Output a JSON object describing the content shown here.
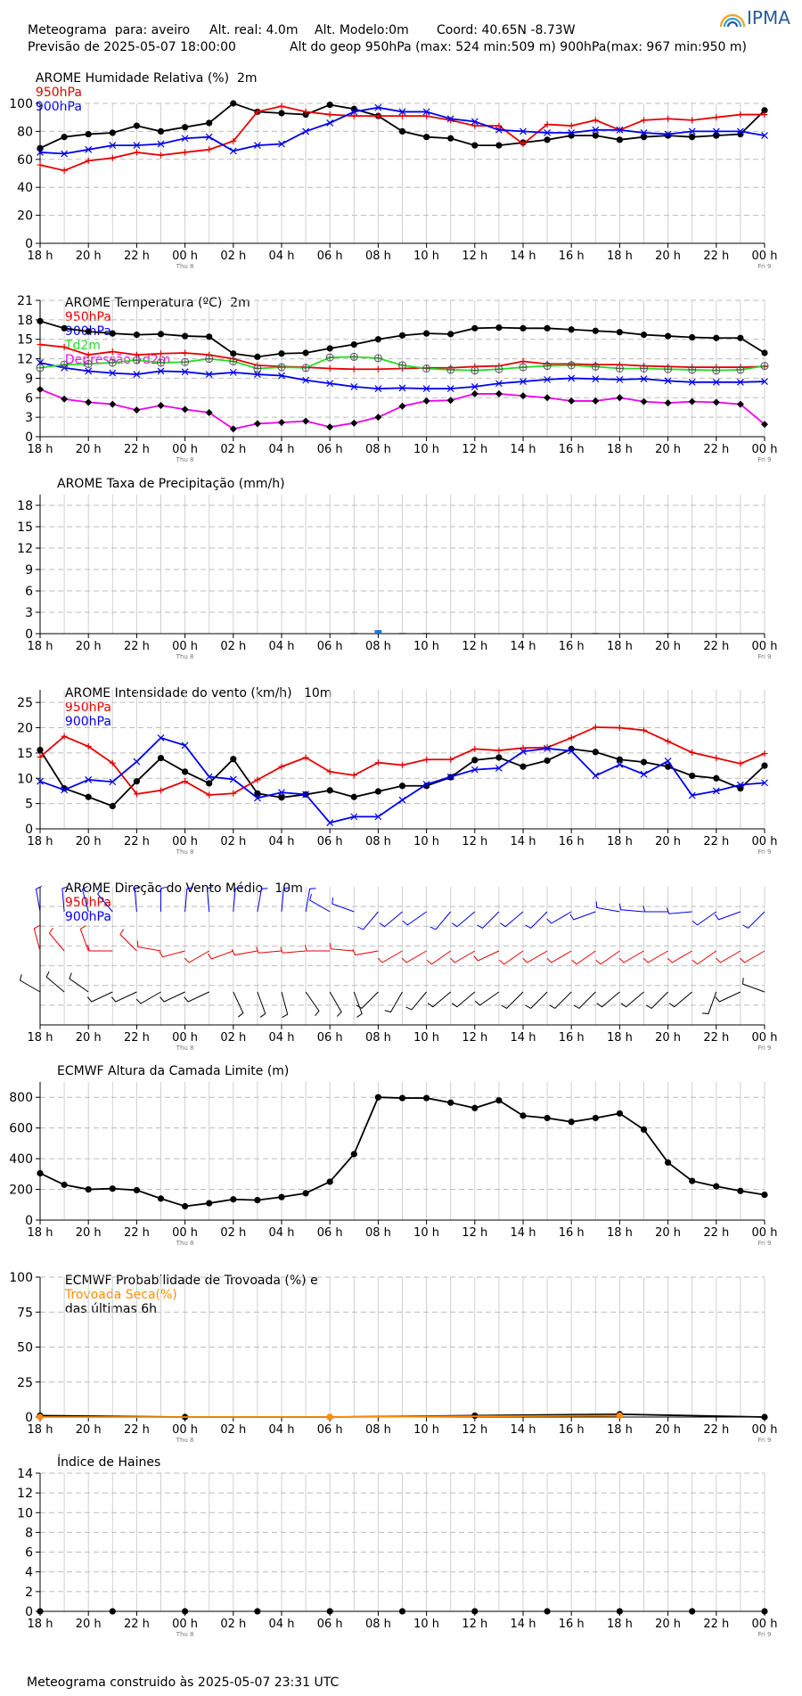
{
  "header": {
    "line1_a": "Meteograma  para: aveiro",
    "line1_b": "Alt. real: 4.0m",
    "line1_c": "Alt. Modelo:0m",
    "line1_d": "Coord: 40.65N -8.73W",
    "line2_a": "Previsão de 2025-05-07 18:00:00",
    "line2_b": "Alt do geop 950hPa (max: 524 min:509 m) 900hPa(max: 967 min:950 m)"
  },
  "logo": {
    "text": "IPMA"
  },
  "footer": "Meteograma construido às 2025-05-07 23:31 UTC",
  "colors": {
    "black": "#000000",
    "red": "#e60000",
    "blue": "#0000ee",
    "green": "#22dd22",
    "magenta": "#ee00ee",
    "orange": "#ff8c00",
    "precip": "#1f77d4"
  },
  "x_ticks": [
    "18 h",
    "20 h",
    "22 h",
    "00 h",
    "02 h",
    "04 h",
    "06 h",
    "08 h",
    "10 h",
    "12 h",
    "14 h",
    "16 h",
    "18 h",
    "20 h",
    "22 h",
    "00 h"
  ],
  "day_labels": [
    {
      "at": 3,
      "text": "Thu 8"
    },
    {
      "at": 15,
      "text": "Fri 9"
    }
  ],
  "chart_data": [
    {
      "id": "humidity",
      "type": "line",
      "title": "AROME Humidade Relativa (%)  2m",
      "legend": [
        {
          "text": "950hPa",
          "color": "red"
        },
        {
          "text": "900hPa",
          "color": "blue"
        }
      ],
      "ylim": [
        0,
        100
      ],
      "yticks": [
        "0",
        "20",
        "40",
        "60",
        "80",
        "100"
      ],
      "series": [
        {
          "name": "2m",
          "color": "black",
          "marker": "dot",
          "values": [
            68,
            76,
            78,
            79,
            84,
            80,
            83,
            86,
            100,
            94,
            93,
            92,
            99,
            96,
            91,
            80,
            76,
            75,
            70,
            70,
            72,
            74,
            77,
            77,
            74,
            76,
            77,
            76,
            77,
            78,
            95
          ]
        },
        {
          "name": "950hPa",
          "color": "red",
          "marker": "plus",
          "values": [
            56,
            52,
            59,
            61,
            65,
            63,
            65,
            67,
            73,
            94,
            98,
            94,
            92,
            91,
            91,
            91,
            91,
            88,
            84,
            84,
            71,
            85,
            84,
            88,
            81,
            88,
            89,
            88,
            90,
            92,
            92
          ]
        },
        {
          "name": "900hPa",
          "color": "blue",
          "marker": "x",
          "values": [
            65,
            64,
            67,
            70,
            70,
            71,
            75,
            76,
            66,
            70,
            71,
            80,
            86,
            94,
            97,
            94,
            94,
            89,
            87,
            81,
            80,
            79,
            79,
            81,
            81,
            79,
            78,
            80,
            80,
            80,
            77
          ]
        }
      ]
    },
    {
      "id": "temperature",
      "type": "line",
      "title": "AROME Temperatura (ºC)  2m",
      "legend": [
        {
          "text": "950hPa",
          "color": "red"
        },
        {
          "text": "900hPa",
          "color": "blue"
        },
        {
          "text": "Td2m",
          "color": "green"
        },
        {
          "text": "Depressão Td2m",
          "color": "magenta"
        }
      ],
      "ylim": [
        0,
        21
      ],
      "yticks": [
        "0",
        "3",
        "6",
        "9",
        "12",
        "15",
        "18",
        "21"
      ],
      "series": [
        {
          "name": "2m",
          "color": "black",
          "marker": "dot",
          "values": [
            17.8,
            16.7,
            16.2,
            15.9,
            15.7,
            15.8,
            15.5,
            15.4,
            12.8,
            12.3,
            12.8,
            12.9,
            13.6,
            14.2,
            15.0,
            15.6,
            15.9,
            15.8,
            16.7,
            16.8,
            16.7,
            16.7,
            16.5,
            16.3,
            16.1,
            15.7,
            15.5,
            15.3,
            15.2,
            15.2,
            12.9
          ]
        },
        {
          "name": "950hPa",
          "color": "red",
          "marker": "plus",
          "values": [
            14.2,
            13.8,
            12.6,
            13.1,
            12.6,
            12.8,
            12.9,
            12.6,
            12.0,
            11.0,
            10.8,
            10.7,
            10.5,
            10.4,
            10.4,
            10.5,
            10.6,
            10.6,
            10.8,
            10.9,
            11.6,
            11.2,
            11.2,
            11.1,
            11.1,
            10.9,
            10.8,
            10.7,
            10.7,
            10.7,
            10.8
          ]
        },
        {
          "name": "900hPa",
          "color": "blue",
          "marker": "x",
          "values": [
            11.4,
            10.6,
            10.1,
            9.8,
            9.6,
            10.1,
            10.0,
            9.6,
            9.9,
            9.6,
            9.4,
            8.7,
            8.2,
            7.7,
            7.4,
            7.5,
            7.4,
            7.4,
            7.7,
            8.2,
            8.5,
            8.8,
            9.0,
            8.9,
            8.8,
            8.9,
            8.6,
            8.4,
            8.4,
            8.4,
            8.5
          ]
        },
        {
          "name": "Td2m",
          "color": "green",
          "marker": "circleplus",
          "values": [
            10.6,
            11.1,
            11.2,
            11.4,
            11.8,
            11.4,
            11.5,
            12.0,
            11.6,
            10.5,
            10.7,
            10.6,
            12.2,
            12.3,
            12.1,
            11.0,
            10.5,
            10.3,
            10.2,
            10.4,
            10.7,
            10.9,
            11.0,
            10.8,
            10.5,
            10.5,
            10.4,
            10.3,
            10.2,
            10.3,
            10.9
          ]
        },
        {
          "name": "Depressão Td2m",
          "color": "magenta",
          "marker": "diamond",
          "values": [
            7.3,
            5.8,
            5.3,
            5.0,
            4.1,
            4.8,
            4.2,
            3.7,
            1.2,
            2.0,
            2.2,
            2.4,
            1.5,
            2.1,
            3.0,
            4.7,
            5.5,
            5.6,
            6.6,
            6.6,
            6.3,
            6.0,
            5.5,
            5.5,
            6.0,
            5.4,
            5.2,
            5.4,
            5.3,
            5.0,
            1.9
          ]
        }
      ]
    },
    {
      "id": "precipitation",
      "type": "bar",
      "title": "AROME Taxa de Precipitação (mm/h)",
      "ylim": [
        0,
        19.5
      ],
      "yticks": [
        "0",
        "3",
        "6",
        "9",
        "12",
        "15",
        "18"
      ],
      "values": [
        0,
        0,
        0,
        0,
        0,
        0,
        0,
        0,
        0,
        0,
        0,
        0,
        0,
        0.1,
        0.5,
        0.05,
        0.05,
        0,
        0,
        0,
        0,
        0,
        0,
        0.05,
        0,
        0,
        0.05,
        0,
        0,
        0,
        0
      ]
    },
    {
      "id": "wind",
      "type": "line",
      "title": "AROME Intensidade do vento (km/h)   10m",
      "legend": [
        {
          "text": "950hPa",
          "color": "red"
        },
        {
          "text": "900hPa",
          "color": "blue"
        }
      ],
      "ylim": [
        0,
        27.5
      ],
      "yticks": [
        "0",
        "5",
        "10",
        "15",
        "20",
        "25"
      ],
      "series": [
        {
          "name": "10m",
          "color": "black",
          "marker": "dot",
          "values": [
            15.6,
            8.0,
            6.3,
            4.5,
            9.4,
            14.0,
            11.3,
            9.0,
            13.8,
            7.0,
            6.2,
            6.8,
            7.6,
            6.3,
            7.4,
            8.5,
            8.5,
            10.2,
            13.6,
            14.1,
            12.3,
            13.5,
            15.8,
            15.2,
            13.7,
            13.2,
            12.3,
            10.5,
            10.0,
            8.0,
            12.5
          ]
        },
        {
          "name": "950hPa",
          "color": "red",
          "marker": "plus",
          "values": [
            14.2,
            18.3,
            16.3,
            13.0,
            6.9,
            7.6,
            9.4,
            6.7,
            7.0,
            9.7,
            12.3,
            14.1,
            11.3,
            10.6,
            13.1,
            12.6,
            13.7,
            13.7,
            15.8,
            15.5,
            16.0,
            16.1,
            18.0,
            20.1,
            20.0,
            19.5,
            17.3,
            15.1,
            14.0,
            12.9,
            14.9
          ]
        },
        {
          "name": "900hPa",
          "color": "blue",
          "marker": "x",
          "values": [
            9.4,
            7.7,
            9.7,
            9.3,
            13.3,
            18.0,
            16.5,
            10.3,
            9.8,
            6.1,
            7.2,
            6.8,
            1.2,
            2.4,
            2.4,
            5.7,
            8.8,
            10.3,
            11.7,
            12.0,
            15.3,
            15.9,
            15.4,
            10.5,
            12.7,
            10.8,
            13.4,
            6.6,
            7.5,
            8.7,
            9.1
          ]
        }
      ]
    },
    {
      "id": "wind_direction",
      "type": "scatter",
      "title": "AROME Direção do Vento Médio   10m",
      "legend": [
        {
          "text": "950hPa",
          "color": "red"
        },
        {
          "text": "900hPa",
          "color": "blue"
        }
      ],
      "series": [
        {
          "name": "900hPa",
          "color": "blue",
          "degrees": [
            350,
            355,
            345,
            320,
            355,
            0,
            5,
            355,
            5,
            10,
            5,
            10,
            300,
            290,
            220,
            230,
            235,
            220,
            230,
            225,
            230,
            225,
            240,
            250,
            280,
            275,
            270,
            265,
            235,
            250,
            225
          ]
        },
        {
          "name": "950hPa",
          "color": "red",
          "degrees": [
            345,
            320,
            340,
            270,
            315,
            280,
            255,
            240,
            250,
            260,
            265,
            265,
            270,
            275,
            260,
            240,
            240,
            235,
            240,
            245,
            235,
            240,
            240,
            235,
            235,
            240,
            240,
            240,
            235,
            240,
            240
          ]
        },
        {
          "name": "10m",
          "color": "black",
          "degrees": [
            300,
            310,
            305,
            245,
            245,
            240,
            245,
            245,
            155,
            160,
            165,
            145,
            150,
            160,
            225,
            210,
            220,
            230,
            230,
            235,
            225,
            225,
            225,
            225,
            230,
            230,
            225,
            230,
            200,
            245,
            290
          ]
        }
      ]
    },
    {
      "id": "boundary_layer",
      "type": "line",
      "title": "ECMWF Altura da Camada Limite (m)",
      "ylim": [
        0,
        900
      ],
      "yticks": [
        "0",
        "200",
        "400",
        "600",
        "800"
      ],
      "series": [
        {
          "name": "",
          "color": "black",
          "marker": "dot",
          "values": [
            305,
            230,
            200,
            205,
            195,
            140,
            90,
            110,
            135,
            130,
            150,
            175,
            250,
            430,
            800,
            795,
            795,
            765,
            730,
            780,
            680,
            665,
            640,
            665,
            695,
            590,
            375,
            255,
            220,
            190,
            165
          ]
        }
      ]
    },
    {
      "id": "thunder",
      "type": "line",
      "title_a": "ECMWF Probabilidade de Trovoada (%) e",
      "title_b": "Trovoada Seca(%)",
      "title_c": "das últimas 6h",
      "ylim": [
        0,
        100
      ],
      "yticks": [
        "0",
        "25",
        "50",
        "75",
        "100"
      ],
      "series": [
        {
          "name": "Trovoada",
          "color": "black",
          "marker": "dot",
          "x": [
            0,
            6,
            12,
            18,
            24,
            30
          ],
          "values": [
            1,
            0,
            0,
            1,
            2,
            0
          ]
        },
        {
          "name": "Trovoada Seca(%)",
          "color": "orange",
          "marker": "dot",
          "x": [
            0,
            12,
            24
          ],
          "values": [
            0,
            0,
            1
          ]
        }
      ]
    },
    {
      "id": "haines",
      "type": "scatter",
      "title": "Índice de Haines",
      "ylim": [
        0,
        14
      ],
      "yticks": [
        "0",
        "2",
        "4",
        "6",
        "8",
        "10",
        "12",
        "14"
      ],
      "series": [
        {
          "name": "",
          "color": "black",
          "marker": "dot",
          "x": [
            0,
            3,
            6,
            9,
            12,
            15,
            18,
            21,
            24,
            27,
            30
          ],
          "values": [
            0,
            0,
            0,
            0,
            0,
            0,
            0,
            0,
            0,
            0,
            0
          ]
        }
      ]
    }
  ]
}
